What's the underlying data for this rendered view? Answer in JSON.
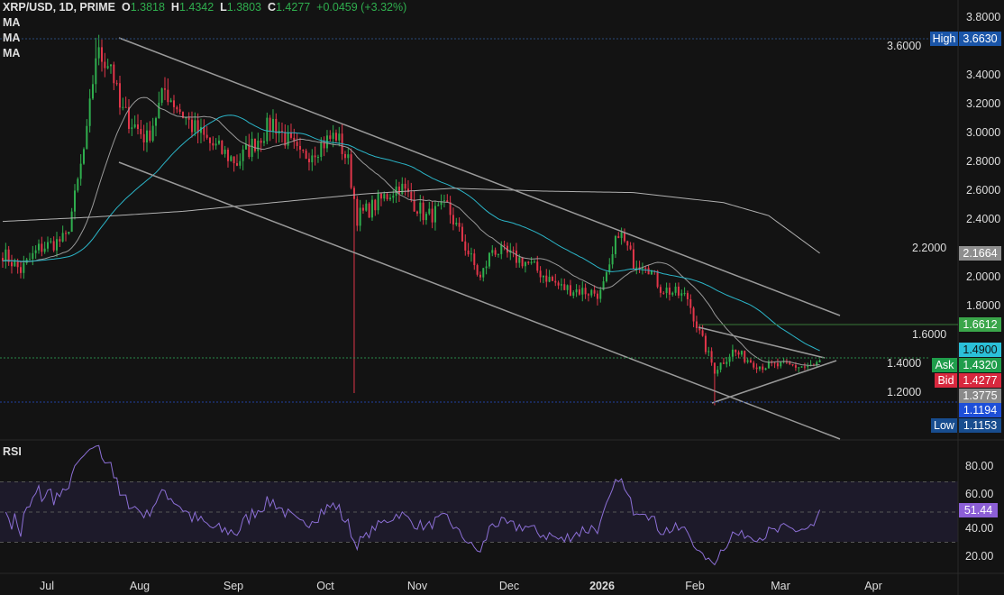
{
  "header": {
    "symbol": "XRP/USD, 1D, PRIME",
    "o_label": "O",
    "o": "1.3818",
    "h_label": "H",
    "h": "1.4342",
    "l_label": "L",
    "l": "1.3803",
    "c_label": "C",
    "c": "1.4277",
    "change": "+0.0459 (+3.32%)"
  },
  "indicators": [
    "MA",
    "MA",
    "MA"
  ],
  "rsi_label": "RSI",
  "tags": {
    "high_label": "High",
    "high": "3.6630",
    "ma200": "2.1664",
    "resistance": "1.6612",
    "ma50": "1.4900",
    "ask_label": "Ask",
    "ask": "1.4320",
    "bid_label": "Bid",
    "bid": "1.4277",
    "ma20": "1.3775",
    "support": "1.1194",
    "low_label": "Low",
    "low": "1.1153",
    "rsi": "51.44"
  },
  "colors": {
    "up": "#2fae4e",
    "down": "#e2364a",
    "ma20": "#9a9a9a",
    "ma50": "#2bb5c8",
    "ma200": "#b0b0b0",
    "rsi": "#8c6fd6"
  },
  "chart_data": {
    "type": "candlestick",
    "title": "XRP/USD, 1D, PRIME",
    "y_ticks": [
      "3.8000",
      "3.6000",
      "3.4000",
      "3.2000",
      "3.0000",
      "2.8000",
      "2.6000",
      "2.4000",
      "2.2000",
      "2.0000",
      "1.8000",
      "1.6000",
      "1.4000",
      "1.2000"
    ],
    "ylim": [
      1.0,
      3.9
    ],
    "x_ticks": [
      "Jul",
      "Aug",
      "Sep",
      "Oct",
      "Nov",
      "Dec",
      "2026",
      "Feb",
      "Mar",
      "Apr"
    ],
    "close_path_day_price": [
      [
        0,
        2.17
      ],
      [
        6,
        2.05
      ],
      [
        12,
        2.2
      ],
      [
        21,
        2.27
      ],
      [
        24,
        2.55
      ],
      [
        28,
        2.99
      ],
      [
        31,
        3.55
      ],
      [
        36,
        3.49
      ],
      [
        39,
        3.17
      ],
      [
        48,
        2.96
      ],
      [
        54,
        3.3
      ],
      [
        63,
        3.05
      ],
      [
        69,
        2.93
      ],
      [
        78,
        2.8
      ],
      [
        90,
        3.08
      ],
      [
        99,
        2.83
      ],
      [
        111,
        2.99
      ],
      [
        115,
        2.8
      ],
      [
        118,
        2.42
      ],
      [
        123,
        2.49
      ],
      [
        132,
        2.64
      ],
      [
        141,
        2.42
      ],
      [
        148,
        2.49
      ],
      [
        159,
        1.99
      ],
      [
        163,
        2.2
      ],
      [
        174,
        2.11
      ],
      [
        186,
        1.93
      ],
      [
        199,
        1.89
      ],
      [
        202,
        2.05
      ],
      [
        205,
        2.33
      ],
      [
        210,
        2.11
      ],
      [
        214,
        2.11
      ],
      [
        219,
        1.93
      ],
      [
        228,
        1.86
      ],
      [
        232,
        1.61
      ],
      [
        237,
        1.36
      ],
      [
        243,
        1.49
      ],
      [
        252,
        1.39
      ],
      [
        261,
        1.39
      ],
      [
        270,
        1.38
      ],
      [
        272,
        1.4277
      ]
    ],
    "ma200_day_price": [
      [
        0,
        2.39
      ],
      [
        30,
        2.42
      ],
      [
        60,
        2.46
      ],
      [
        90,
        2.52
      ],
      [
        120,
        2.58
      ],
      [
        150,
        2.62
      ],
      [
        180,
        2.6
      ],
      [
        210,
        2.59
      ],
      [
        240,
        2.52
      ],
      [
        255,
        2.43
      ],
      [
        272,
        2.17
      ]
    ],
    "rsi_ticks": [
      "80.00",
      "60.00",
      "40.00",
      "20.00"
    ],
    "rsi_levels": [
      70,
      50,
      30
    ],
    "rsi_last": 51.44
  }
}
